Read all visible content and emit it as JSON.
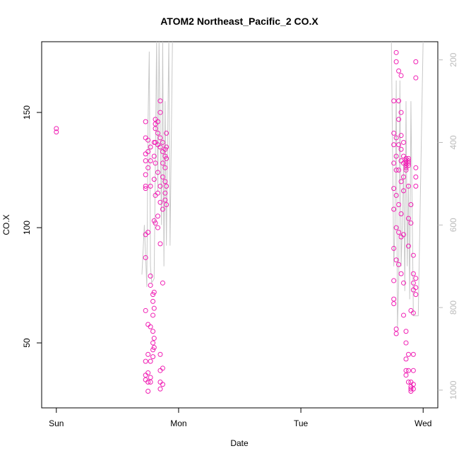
{
  "chart_data": {
    "type": "scatter",
    "title": "ATOM2 Northeast_Pacific_2 CO.X",
    "xlabel": "Date",
    "ylabel": "CO.X",
    "xlim": [
      -0.12,
      3.12
    ],
    "ylim": [
      21.8,
      180.7
    ],
    "y2lim": [
      1043,
      156
    ],
    "xticks": [
      {
        "value": 0,
        "label": "Sun"
      },
      {
        "value": 1,
        "label": "Mon"
      },
      {
        "value": 2,
        "label": "Tue"
      },
      {
        "value": 3,
        "label": "Wed"
      }
    ],
    "yticks": [
      50,
      100,
      150
    ],
    "y2ticks": [
      200,
      400,
      600,
      800,
      1000
    ],
    "series": [
      {
        "color": "#f01fb4",
        "x": [
          0,
          0,
          0.73,
          0.73,
          0.73,
          0.73,
          0.73,
          0.73,
          0.73,
          0.73,
          0.73,
          0.73,
          0.73,
          0.73,
          0.73,
          0.75,
          0.75,
          0.75,
          0.75,
          0.75,
          0.75,
          0.75,
          0.75,
          0.75,
          0.77,
          0.77,
          0.77,
          0.77,
          0.77,
          0.77,
          0.77,
          0.77,
          0.77,
          0.79,
          0.79,
          0.79,
          0.79,
          0.79,
          0.79,
          0.79,
          0.8,
          0.8,
          0.8,
          0.8,
          0.8,
          0.8,
          0.8,
          0.8,
          0.81,
          0.81,
          0.81,
          0.81,
          0.81,
          0.81,
          0.81,
          0.83,
          0.83,
          0.83,
          0.83,
          0.83,
          0.83,
          0.83,
          0.85,
          0.85,
          0.85,
          0.85,
          0.85,
          0.85,
          0.85,
          0.85,
          0.85,
          0.85,
          0.85,
          0.87,
          0.87,
          0.87,
          0.87,
          0.87,
          0.87,
          0.87,
          0.87,
          0.89,
          0.89,
          0.89,
          0.89,
          0.89,
          0.89,
          0.9,
          0.9,
          0.9,
          0.9,
          0.9,
          2.76,
          2.76,
          2.76,
          2.76,
          2.76,
          2.76,
          2.76,
          2.76,
          2.76,
          2.76,
          2.78,
          2.78,
          2.78,
          2.78,
          2.78,
          2.78,
          2.78,
          2.78,
          2.78,
          2.78,
          2.8,
          2.8,
          2.8,
          2.8,
          2.8,
          2.8,
          2.8,
          2.8,
          2.82,
          2.82,
          2.82,
          2.82,
          2.82,
          2.82,
          2.82,
          2.82,
          2.82,
          2.84,
          2.84,
          2.84,
          2.84,
          2.84,
          2.84,
          2.84,
          2.84,
          2.86,
          2.86,
          2.86,
          2.86,
          2.86,
          2.86,
          2.86,
          2.86,
          2.86,
          2.86,
          2.86,
          2.88,
          2.88,
          2.88,
          2.88,
          2.88,
          2.88,
          2.88,
          2.88,
          2.88,
          2.88,
          2.9,
          2.9,
          2.9,
          2.9,
          2.9,
          2.9,
          2.9,
          2.92,
          2.92,
          2.92,
          2.92,
          2.92,
          2.92,
          2.92,
          2.92,
          2.92,
          2.94,
          2.94,
          2.94,
          2.94,
          2.94,
          2.94,
          2.94,
          2.94
        ],
        "values": [
          143,
          141.5,
          146,
          139,
          132,
          129,
          123,
          118,
          117,
          97,
          87,
          64,
          42,
          36,
          34,
          138,
          133,
          126,
          98,
          58,
          45,
          37,
          33,
          29,
          135,
          129,
          118,
          79,
          75,
          57,
          42,
          35,
          33,
          71,
          68,
          62,
          55,
          50,
          47,
          44,
          137,
          131,
          121,
          103,
          72,
          65,
          52,
          48,
          147,
          145,
          143,
          137,
          128,
          114,
          102,
          146,
          141,
          136,
          124,
          115,
          105,
          100,
          155,
          150,
          139,
          135,
          118,
          111,
          93,
          45,
          38,
          33,
          30,
          137,
          133,
          128,
          122,
          108,
          76,
          39,
          32,
          134,
          131,
          126,
          120,
          115,
          112,
          141,
          135,
          130,
          118,
          110,
          155,
          141,
          136,
          128,
          117,
          108,
          91,
          77,
          69,
          67,
          176,
          172,
          139,
          131,
          125,
          114,
          100,
          86,
          56,
          54,
          168,
          155,
          147,
          136,
          125,
          110,
          98,
          84,
          166,
          150,
          140,
          134,
          129,
          120,
          106,
          96,
          80,
          137,
          131,
          128,
          122,
          116,
          97,
          76,
          62,
          130,
          129,
          128,
          127,
          126,
          125,
          55,
          50,
          43,
          38,
          36,
          130,
          129,
          128,
          127,
          118,
          104,
          92,
          45,
          38,
          33,
          110,
          102,
          64,
          33,
          31,
          30,
          29,
          88,
          80,
          76,
          73,
          63,
          45,
          38,
          32,
          30,
          126,
          122,
          118,
          172,
          165,
          78,
          74,
          71
        ]
      },
      {
        "type": "line",
        "axis": "y2",
        "color": "#c8c8c8",
        "x": [
          0.7,
          0.72,
          0.74,
          0.75,
          0.76,
          0.77,
          0.78,
          0.8,
          0.82,
          0.83,
          0.84,
          0.85,
          0.86,
          0.87,
          0.88,
          0.89,
          0.9,
          0.92,
          0.93,
          0.95,
          1.0,
          2.0,
          2.74,
          2.76,
          2.77,
          2.78,
          2.79,
          2.8,
          2.81,
          2.82,
          2.83,
          2.84,
          2.85,
          2.86,
          2.87,
          2.88,
          2.89,
          2.9,
          2.92,
          2.94,
          2.96,
          3.0
        ],
        "values": [
          720,
          600,
          750,
          350,
          180,
          700,
          740,
          730,
          150,
          520,
          150,
          380,
          600,
          150,
          700,
          300,
          650,
          150,
          650,
          150,
          150,
          null,
          150,
          700,
          600,
          250,
          850,
          740,
          250,
          700,
          600,
          450,
          760,
          300,
          700,
          500,
          780,
          300,
          820,
          820,
          820,
          150
        ]
      }
    ]
  }
}
